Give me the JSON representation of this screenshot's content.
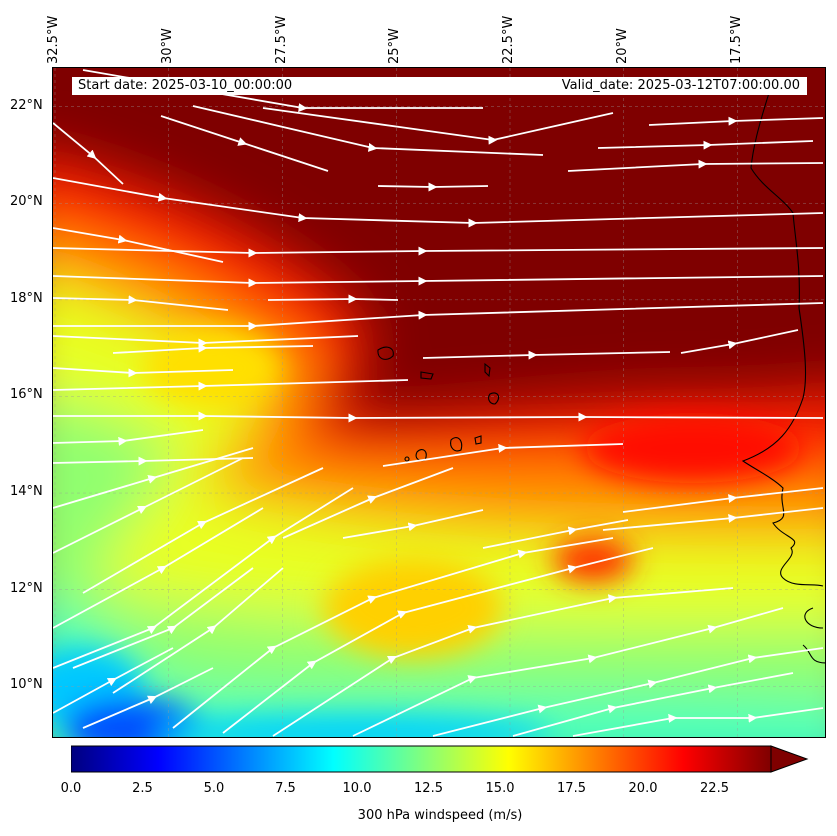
{
  "map": {
    "start_date": "Start date: 2025-03-10_00:00:00",
    "valid_date": "Valid_date: 2025-03-12T07:00:00.00",
    "longitude_labels": [
      "32.5°W",
      "30°W",
      "27.5°W",
      "25°W",
      "22.5°W",
      "20°W",
      "17.5°W"
    ],
    "latitude_labels": [
      "22°N",
      "20°N",
      "18°N",
      "16°N",
      "14°N",
      "12°N",
      "10°N"
    ],
    "longitudes": [
      -32.5,
      -30,
      -27.5,
      -25,
      -22.5,
      -20,
      -17.5
    ],
    "latitudes": [
      22,
      20,
      18,
      16,
      14,
      12,
      10
    ],
    "lon_range": [
      -32.5,
      -15.0
    ],
    "lat_range": [
      8.9,
      22.8
    ],
    "field": "300 hPa windspeed",
    "units": "m/s",
    "streamline_color": "#ffffff",
    "coastline_color": "#000000"
  },
  "colorbar": {
    "label": "300 hPa windspeed (m/s)",
    "tick_labels": [
      "0.0",
      "2.5",
      "5.0",
      "7.5",
      "10.0",
      "12.5",
      "15.0",
      "17.5",
      "20.0",
      "22.5"
    ],
    "ticks": [
      0,
      2.5,
      5,
      7.5,
      10,
      12.5,
      15,
      17.5,
      20,
      22.5
    ],
    "range": [
      0,
      25
    ],
    "extend": "max",
    "colormap": "jet",
    "colors": [
      "#00007f",
      "#0000ff",
      "#007fff",
      "#00ffff",
      "#7fff7f",
      "#ffff00",
      "#ff7f00",
      "#ff0000",
      "#7f0000"
    ]
  }
}
